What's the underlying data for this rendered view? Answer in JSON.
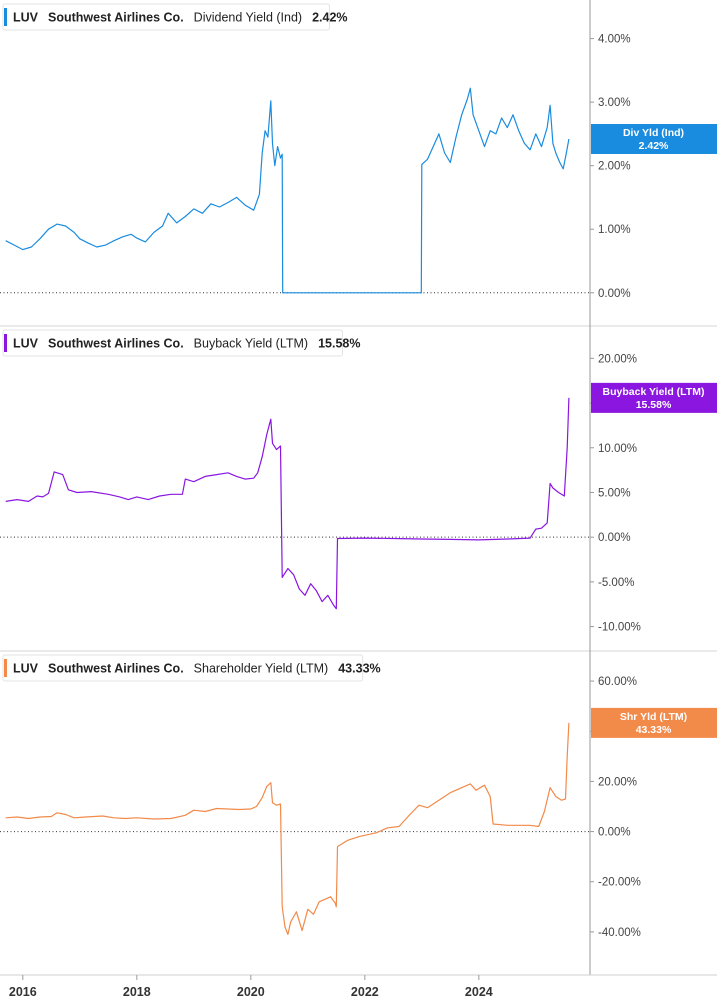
{
  "chart_data": [
    {
      "type": "line",
      "ticker": "LUV",
      "company": "Southwest Airlines Co.",
      "metric": "Dividend Yield (Ind)",
      "last_value": "2.42%",
      "tag_line1": "Div Yld (Ind)",
      "tag_line2": "2.42%",
      "color": "#1a8cdf",
      "ylim": [
        -0.35,
        4.45
      ],
      "yticks": [
        0,
        1,
        2,
        3,
        4
      ],
      "ytick_labels": [
        "0.00%",
        "1.00%",
        "2.00%",
        "3.00%",
        "4.00%"
      ],
      "tag_value": 2.42,
      "series": [
        {
          "values": [
            [
              2015.7,
              0.82
            ],
            [
              2015.85,
              0.75
            ],
            [
              2016.0,
              0.68
            ],
            [
              2016.15,
              0.72
            ],
            [
              2016.3,
              0.85
            ],
            [
              2016.45,
              1.0
            ],
            [
              2016.6,
              1.08
            ],
            [
              2016.75,
              1.05
            ],
            [
              2016.9,
              0.95
            ],
            [
              2017.0,
              0.85
            ],
            [
              2017.15,
              0.78
            ],
            [
              2017.3,
              0.72
            ],
            [
              2017.45,
              0.75
            ],
            [
              2017.6,
              0.82
            ],
            [
              2017.75,
              0.88
            ],
            [
              2017.9,
              0.92
            ],
            [
              2018.0,
              0.86
            ],
            [
              2018.15,
              0.8
            ],
            [
              2018.3,
              0.95
            ],
            [
              2018.45,
              1.05
            ],
            [
              2018.55,
              1.25
            ],
            [
              2018.7,
              1.1
            ],
            [
              2018.85,
              1.2
            ],
            [
              2019.0,
              1.32
            ],
            [
              2019.15,
              1.25
            ],
            [
              2019.3,
              1.4
            ],
            [
              2019.45,
              1.35
            ],
            [
              2019.6,
              1.42
            ],
            [
              2019.75,
              1.5
            ],
            [
              2019.9,
              1.38
            ],
            [
              2020.05,
              1.3
            ],
            [
              2020.15,
              1.55
            ],
            [
              2020.2,
              2.2
            ],
            [
              2020.25,
              2.55
            ],
            [
              2020.3,
              2.45
            ],
            [
              2020.35,
              3.02
            ],
            [
              2020.38,
              2.35
            ],
            [
              2020.42,
              2.0
            ],
            [
              2020.47,
              2.3
            ],
            [
              2020.52,
              2.12
            ],
            [
              2020.55,
              2.18
            ],
            [
              2020.56,
              0.0
            ],
            [
              2022.99,
              0.0
            ],
            [
              2023.0,
              2.02
            ],
            [
              2023.1,
              2.1
            ],
            [
              2023.2,
              2.3
            ],
            [
              2023.3,
              2.5
            ],
            [
              2023.4,
              2.2
            ],
            [
              2023.5,
              2.05
            ],
            [
              2023.6,
              2.45
            ],
            [
              2023.7,
              2.8
            ],
            [
              2023.8,
              3.05
            ],
            [
              2023.85,
              3.22
            ],
            [
              2023.9,
              2.8
            ],
            [
              2024.0,
              2.55
            ],
            [
              2024.1,
              2.3
            ],
            [
              2024.2,
              2.55
            ],
            [
              2024.3,
              2.5
            ],
            [
              2024.4,
              2.75
            ],
            [
              2024.5,
              2.6
            ],
            [
              2024.6,
              2.8
            ],
            [
              2024.7,
              2.55
            ],
            [
              2024.8,
              2.35
            ],
            [
              2024.9,
              2.25
            ],
            [
              2025.0,
              2.5
            ],
            [
              2025.1,
              2.3
            ],
            [
              2025.2,
              2.6
            ],
            [
              2025.25,
              2.95
            ],
            [
              2025.3,
              2.35
            ],
            [
              2025.35,
              2.2
            ],
            [
              2025.42,
              2.05
            ],
            [
              2025.48,
              1.95
            ],
            [
              2025.53,
              2.18
            ],
            [
              2025.58,
              2.42
            ]
          ]
        }
      ]
    },
    {
      "type": "line",
      "ticker": "LUV",
      "company": "Southwest Airlines Co.",
      "metric": "Buyback Yield (LTM)",
      "last_value": "15.58%",
      "tag_line1": "Buyback Yield (LTM)",
      "tag_line2": "15.58%",
      "color": "#8a16e0",
      "ylim": [
        -11.5,
        22.5
      ],
      "yticks": [
        -10,
        -5,
        0,
        5,
        10,
        15,
        20
      ],
      "ytick_labels": [
        "-10.00%",
        "-5.00%",
        "0.00%",
        "5.00%",
        "10.00%",
        "15.00%",
        "20.00%"
      ],
      "tag_value": 15.58,
      "series": [
        {
          "values": [
            [
              2015.7,
              4.0
            ],
            [
              2015.9,
              4.2
            ],
            [
              2016.1,
              4.0
            ],
            [
              2016.25,
              4.6
            ],
            [
              2016.35,
              4.5
            ],
            [
              2016.45,
              4.9
            ],
            [
              2016.55,
              7.3
            ],
            [
              2016.7,
              7.0
            ],
            [
              2016.8,
              5.3
            ],
            [
              2016.95,
              5.0
            ],
            [
              2017.2,
              5.1
            ],
            [
              2017.5,
              4.8
            ],
            [
              2017.7,
              4.5
            ],
            [
              2017.85,
              4.2
            ],
            [
              2018.0,
              4.5
            ],
            [
              2018.2,
              4.2
            ],
            [
              2018.4,
              4.6
            ],
            [
              2018.6,
              4.8
            ],
            [
              2018.8,
              4.8
            ],
            [
              2018.85,
              6.5
            ],
            [
              2019.0,
              6.2
            ],
            [
              2019.2,
              6.8
            ],
            [
              2019.4,
              7.0
            ],
            [
              2019.6,
              7.2
            ],
            [
              2019.75,
              6.8
            ],
            [
              2019.9,
              6.5
            ],
            [
              2020.05,
              6.6
            ],
            [
              2020.12,
              7.2
            ],
            [
              2020.2,
              9.0
            ],
            [
              2020.28,
              11.5
            ],
            [
              2020.35,
              13.2
            ],
            [
              2020.38,
              10.5
            ],
            [
              2020.45,
              9.8
            ],
            [
              2020.52,
              10.2
            ],
            [
              2020.55,
              -4.5
            ],
            [
              2020.65,
              -3.5
            ],
            [
              2020.75,
              -4.2
            ],
            [
              2020.85,
              -5.8
            ],
            [
              2020.95,
              -6.5
            ],
            [
              2021.05,
              -5.2
            ],
            [
              2021.15,
              -6.0
            ],
            [
              2021.25,
              -7.2
            ],
            [
              2021.35,
              -6.5
            ],
            [
              2021.45,
              -7.6
            ],
            [
              2021.5,
              -8.0
            ],
            [
              2021.52,
              -0.15
            ],
            [
              2022.0,
              -0.1
            ],
            [
              2022.5,
              -0.15
            ],
            [
              2023.0,
              -0.2
            ],
            [
              2023.5,
              -0.25
            ],
            [
              2024.0,
              -0.3
            ],
            [
              2024.5,
              -0.2
            ],
            [
              2024.9,
              -0.1
            ],
            [
              2025.0,
              0.9
            ],
            [
              2025.1,
              1.0
            ],
            [
              2025.2,
              1.6
            ],
            [
              2025.25,
              6.0
            ],
            [
              2025.3,
              5.5
            ],
            [
              2025.4,
              5.0
            ],
            [
              2025.5,
              4.6
            ],
            [
              2025.55,
              10.0
            ],
            [
              2025.58,
              15.58
            ]
          ]
        }
      ]
    },
    {
      "type": "line",
      "ticker": "LUV",
      "company": "Southwest Airlines Co.",
      "metric": "Shareholder Yield (LTM)",
      "last_value": "43.33%",
      "tag_line1": "Shr Yld (LTM)",
      "tag_line2": "43.33%",
      "color": "#f28a4a",
      "ylim": [
        -52,
        68
      ],
      "yticks": [
        -40,
        -20,
        0,
        20,
        40,
        60
      ],
      "ytick_labels": [
        "-40.00%",
        "-20.00%",
        "0.00%",
        "20.00%",
        "40.00%",
        "60.00%"
      ],
      "tag_value": 43.33,
      "series": [
        {
          "values": [
            [
              2015.7,
              5.5
            ],
            [
              2015.9,
              5.8
            ],
            [
              2016.1,
              5.2
            ],
            [
              2016.3,
              5.8
            ],
            [
              2016.5,
              6.0
            ],
            [
              2016.6,
              7.5
            ],
            [
              2016.75,
              6.8
            ],
            [
              2016.9,
              5.5
            ],
            [
              2017.1,
              5.8
            ],
            [
              2017.4,
              6.2
            ],
            [
              2017.6,
              5.5
            ],
            [
              2017.8,
              5.2
            ],
            [
              2018.0,
              5.5
            ],
            [
              2018.3,
              5.0
            ],
            [
              2018.6,
              5.2
            ],
            [
              2018.85,
              6.5
            ],
            [
              2019.0,
              8.5
            ],
            [
              2019.2,
              8.0
            ],
            [
              2019.4,
              9.2
            ],
            [
              2019.6,
              9.0
            ],
            [
              2019.8,
              8.8
            ],
            [
              2020.0,
              9.0
            ],
            [
              2020.1,
              10.0
            ],
            [
              2020.2,
              13.5
            ],
            [
              2020.28,
              18.0
            ],
            [
              2020.35,
              19.5
            ],
            [
              2020.38,
              11.5
            ],
            [
              2020.45,
              10.5
            ],
            [
              2020.52,
              11.0
            ],
            [
              2020.55,
              -30.0
            ],
            [
              2020.6,
              -38.0
            ],
            [
              2020.65,
              -41.0
            ],
            [
              2020.7,
              -36.0
            ],
            [
              2020.8,
              -32.0
            ],
            [
              2020.9,
              -39.5
            ],
            [
              2021.0,
              -31.0
            ],
            [
              2021.1,
              -33.0
            ],
            [
              2021.2,
              -28.0
            ],
            [
              2021.3,
              -27.0
            ],
            [
              2021.4,
              -26.0
            ],
            [
              2021.48,
              -28.5
            ],
            [
              2021.5,
              -30.0
            ],
            [
              2021.52,
              -6.0
            ],
            [
              2021.7,
              -3.5
            ],
            [
              2021.9,
              -2.0
            ],
            [
              2022.2,
              -0.5
            ],
            [
              2022.4,
              1.5
            ],
            [
              2022.6,
              2.0
            ],
            [
              2022.8,
              7.0
            ],
            [
              2022.95,
              10.5
            ],
            [
              2023.1,
              9.5
            ],
            [
              2023.3,
              12.5
            ],
            [
              2023.5,
              15.5
            ],
            [
              2023.7,
              17.5
            ],
            [
              2023.85,
              19.0
            ],
            [
              2023.95,
              16.5
            ],
            [
              2024.1,
              18.5
            ],
            [
              2024.2,
              14.0
            ],
            [
              2024.25,
              3.0
            ],
            [
              2024.5,
              2.5
            ],
            [
              2024.9,
              2.5
            ],
            [
              2025.05,
              2.0
            ],
            [
              2025.15,
              8.0
            ],
            [
              2025.25,
              17.5
            ],
            [
              2025.35,
              14.0
            ],
            [
              2025.45,
              12.5
            ],
            [
              2025.52,
              13.0
            ],
            [
              2025.55,
              30.0
            ],
            [
              2025.58,
              43.33
            ]
          ]
        }
      ]
    }
  ],
  "x_axis": {
    "ticks": [
      2016,
      2018,
      2020,
      2022,
      2024
    ],
    "tick_labels": [
      "2016",
      "2018",
      "2020",
      "2022",
      "2024"
    ],
    "xlim": [
      2015.6,
      2025.95
    ]
  },
  "colors": {
    "axis_line": "#9a9a9a",
    "zero_line": "#333333",
    "tick_text": "#444444"
  }
}
